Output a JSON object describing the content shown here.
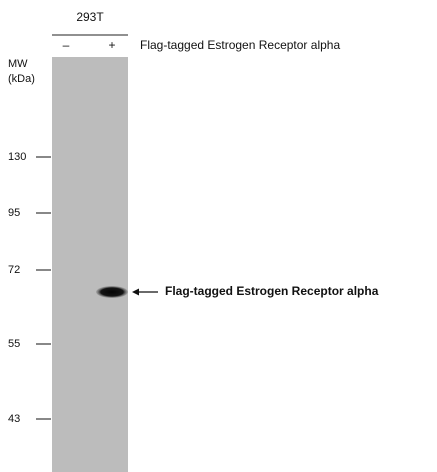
{
  "header": {
    "cell_line": "293T",
    "lanes": [
      "–",
      "+"
    ],
    "treatment": "Flag-tagged Estrogen Receptor alpha"
  },
  "mw_axis": {
    "title_lines": [
      "MW",
      "(kDa)"
    ],
    "markers": [
      "130",
      "95",
      "72",
      "55",
      "43"
    ]
  },
  "band_label": "Flag-tagged Estrogen Receptor alpha"
}
